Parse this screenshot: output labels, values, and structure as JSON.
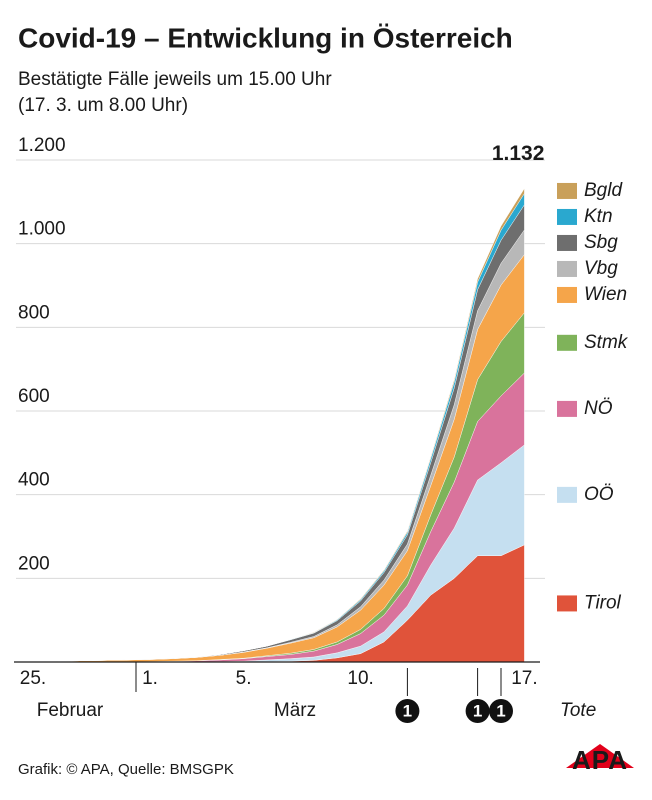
{
  "chart_data": {
    "type": "stacked_area",
    "title": "Covid-19 – Entwicklung in Österreich",
    "subtitle": [
      "Bestätigte Fälle jeweils um 15.00 Uhr",
      "(17. 3. um 8.00 Uhr)"
    ],
    "categories": [
      "25.",
      null,
      null,
      null,
      null,
      "1.",
      null,
      null,
      null,
      "5.",
      null,
      null,
      null,
      null,
      "10.",
      null,
      null,
      null,
      null,
      null,
      null,
      "17."
    ],
    "months": [
      "Februar",
      "März"
    ],
    "series": [
      {
        "name": "Tirol",
        "color": "#e0533a",
        "values": [
          0,
          0,
          0,
          0,
          0,
          0,
          0,
          0,
          0,
          0,
          1,
          2,
          4,
          10,
          20,
          48,
          100,
          160,
          200,
          254,
          254,
          280
        ]
      },
      {
        "name": "OÖ",
        "color": "#c5dff0",
        "values": [
          0,
          0,
          0,
          0,
          0,
          0,
          0,
          0,
          1,
          2,
          4,
          6,
          8,
          12,
          18,
          24,
          34,
          72,
          120,
          181,
          222,
          239
        ]
      },
      {
        "name": "NÖ",
        "color": "#d9739c",
        "values": [
          0,
          0,
          0,
          0,
          0,
          1,
          2,
          3,
          4,
          6,
          8,
          10,
          14,
          20,
          30,
          40,
          50,
          80,
          110,
          140,
          160,
          172
        ]
      },
      {
        "name": "Stmk",
        "color": "#7fb35a",
        "values": [
          0,
          0,
          0,
          0,
          0,
          0,
          0,
          0,
          1,
          1,
          2,
          3,
          4,
          6,
          10,
          16,
          22,
          40,
          60,
          100,
          130,
          144
        ]
      },
      {
        "name": "Wien",
        "color": "#f5a54a",
        "values": [
          2,
          2,
          3,
          4,
          5,
          5,
          6,
          8,
          10,
          14,
          18,
          24,
          28,
          36,
          46,
          56,
          60,
          70,
          90,
          120,
          135,
          139
        ]
      },
      {
        "name": "Vbg",
        "color": "#b8b8b8",
        "values": [
          0,
          0,
          0,
          0,
          0,
          0,
          0,
          0,
          0,
          1,
          1,
          2,
          3,
          5,
          8,
          12,
          16,
          25,
          35,
          45,
          52,
          59
        ]
      },
      {
        "name": "Sbg",
        "color": "#6e6e6e",
        "values": [
          0,
          0,
          0,
          0,
          0,
          1,
          1,
          1,
          2,
          3,
          4,
          6,
          8,
          10,
          14,
          18,
          22,
          30,
          40,
          50,
          55,
          60
        ]
      },
      {
        "name": "Ktn",
        "color": "#2aa8cf",
        "values": [
          0,
          0,
          0,
          0,
          0,
          0,
          0,
          0,
          0,
          0,
          0,
          1,
          1,
          2,
          3,
          4,
          6,
          10,
          14,
          18,
          24,
          27
        ]
      },
      {
        "name": "Bgld",
        "color": "#c9a05a",
        "values": [
          0,
          0,
          0,
          0,
          0,
          0,
          0,
          0,
          0,
          0,
          0,
          0,
          1,
          1,
          2,
          2,
          3,
          4,
          6,
          8,
          10,
          12
        ]
      }
    ],
    "total_label": "1.132",
    "deaths": {
      "label": "Tote",
      "values": [
        null,
        null,
        null,
        null,
        null,
        null,
        null,
        null,
        null,
        null,
        null,
        null,
        null,
        null,
        null,
        null,
        1,
        null,
        null,
        1,
        1,
        null
      ]
    },
    "ylim": [
      0,
      1200
    ],
    "yticks": [
      200,
      400,
      600,
      800,
      {
        "value": 1000,
        "label": "1.000"
      },
      {
        "value": 1200,
        "label": "1.200"
      }
    ],
    "grid": true,
    "source": "Grafik: © APA, Quelle: BMSGPK",
    "logo": "APA"
  }
}
